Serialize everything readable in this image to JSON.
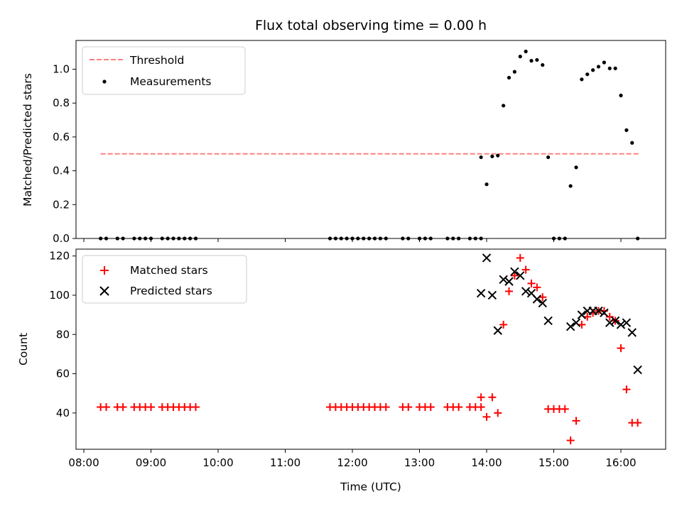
{
  "chart_data": [
    {
      "type": "scatter",
      "title": "Flux total observing time = 0.00 h",
      "xlabel": "",
      "ylabel": "Matched/Predicted stars",
      "xlim": [
        "07:53",
        "16:40"
      ],
      "ylim": [
        0,
        1.17
      ],
      "yticks": [
        "0.0",
        "0.2",
        "0.4",
        "0.6",
        "0.8",
        "1.0"
      ],
      "legend_position": "top-left",
      "grid": false,
      "threshold": {
        "name": "Threshold",
        "y": 0.5,
        "x_start": "08:15",
        "x_end": "16:17",
        "color": "#ff8080",
        "style": "dashed"
      },
      "series": [
        {
          "name": "Measurements",
          "color": "#000000",
          "marker": "dot",
          "points": [
            [
              "08:15",
              0
            ],
            [
              "08:20",
              0
            ],
            [
              "08:30",
              0
            ],
            [
              "08:35",
              0
            ],
            [
              "08:45",
              0
            ],
            [
              "08:50",
              0
            ],
            [
              "08:55",
              0
            ],
            [
              "09:00",
              0
            ],
            [
              "09:10",
              0
            ],
            [
              "09:15",
              0
            ],
            [
              "09:20",
              0
            ],
            [
              "09:25",
              0
            ],
            [
              "09:30",
              0
            ],
            [
              "09:35",
              0
            ],
            [
              "09:40",
              0
            ],
            [
              "11:40",
              0
            ],
            [
              "11:45",
              0
            ],
            [
              "11:50",
              0
            ],
            [
              "11:55",
              0
            ],
            [
              "12:00",
              0
            ],
            [
              "12:05",
              0
            ],
            [
              "12:10",
              0
            ],
            [
              "12:15",
              0
            ],
            [
              "12:20",
              0
            ],
            [
              "12:25",
              0
            ],
            [
              "12:30",
              0
            ],
            [
              "12:45",
              0
            ],
            [
              "12:50",
              0
            ],
            [
              "13:00",
              0
            ],
            [
              "13:05",
              0
            ],
            [
              "13:10",
              0
            ],
            [
              "13:25",
              0
            ],
            [
              "13:30",
              0
            ],
            [
              "13:35",
              0
            ],
            [
              "13:45",
              0
            ],
            [
              "13:50",
              0
            ],
            [
              "13:55",
              0
            ],
            [
              "13:55",
              0.48
            ],
            [
              "14:00",
              0.32
            ],
            [
              "14:05",
              0.485
            ],
            [
              "14:10",
              0.49
            ],
            [
              "14:15",
              0.785
            ],
            [
              "14:20",
              0.95
            ],
            [
              "14:25",
              0.985
            ],
            [
              "14:30",
              1.075
            ],
            [
              "14:35",
              1.105
            ],
            [
              "14:40",
              1.05
            ],
            [
              "14:45",
              1.055
            ],
            [
              "14:50",
              1.025
            ],
            [
              "14:55",
              0.48
            ],
            [
              "15:00",
              0
            ],
            [
              "15:05",
              0
            ],
            [
              "15:10",
              0
            ],
            [
              "15:15",
              0.31
            ],
            [
              "15:20",
              0.42
            ],
            [
              "15:25",
              0.94
            ],
            [
              "15:30",
              0.97
            ],
            [
              "15:35",
              0.995
            ],
            [
              "15:40",
              1.015
            ],
            [
              "15:45",
              1.04
            ],
            [
              "15:50",
              1.005
            ],
            [
              "15:55",
              1.005
            ],
            [
              "16:00",
              0.845
            ],
            [
              "16:05",
              0.64
            ],
            [
              "16:10",
              0.565
            ],
            [
              "16:15",
              0
            ]
          ]
        }
      ]
    },
    {
      "type": "scatter",
      "title": "",
      "xlabel": "Time (UTC)",
      "ylabel": "Count",
      "xlim": [
        "07:53",
        "16:40"
      ],
      "ylim": [
        21.5,
        123.5
      ],
      "xticks": [
        "08:00",
        "09:00",
        "10:00",
        "11:00",
        "12:00",
        "13:00",
        "14:00",
        "15:00",
        "16:00"
      ],
      "yticks": [
        "40",
        "60",
        "80",
        "100",
        "120"
      ],
      "legend_position": "top-left",
      "grid": false,
      "series": [
        {
          "name": "Matched stars",
          "color": "#ff0000",
          "marker": "plus",
          "points": [
            [
              "08:15",
              43
            ],
            [
              "08:20",
              43
            ],
            [
              "08:30",
              43
            ],
            [
              "08:35",
              43
            ],
            [
              "08:45",
              43
            ],
            [
              "08:50",
              43
            ],
            [
              "08:55",
              43
            ],
            [
              "09:00",
              43
            ],
            [
              "09:10",
              43
            ],
            [
              "09:15",
              43
            ],
            [
              "09:20",
              43
            ],
            [
              "09:25",
              43
            ],
            [
              "09:30",
              43
            ],
            [
              "09:35",
              43
            ],
            [
              "09:40",
              43
            ],
            [
              "11:40",
              43
            ],
            [
              "11:45",
              43
            ],
            [
              "11:50",
              43
            ],
            [
              "11:55",
              43
            ],
            [
              "12:00",
              43
            ],
            [
              "12:05",
              43
            ],
            [
              "12:10",
              43
            ],
            [
              "12:15",
              43
            ],
            [
              "12:20",
              43
            ],
            [
              "12:25",
              43
            ],
            [
              "12:30",
              43
            ],
            [
              "12:45",
              43
            ],
            [
              "12:50",
              43
            ],
            [
              "13:00",
              43
            ],
            [
              "13:05",
              43
            ],
            [
              "13:10",
              43
            ],
            [
              "13:25",
              43
            ],
            [
              "13:30",
              43
            ],
            [
              "13:35",
              43
            ],
            [
              "13:45",
              43
            ],
            [
              "13:50",
              43
            ],
            [
              "13:55",
              43
            ],
            [
              "13:55",
              48
            ],
            [
              "14:00",
              38
            ],
            [
              "14:05",
              48
            ],
            [
              "14:10",
              40
            ],
            [
              "14:15",
              85
            ],
            [
              "14:20",
              102
            ],
            [
              "14:25",
              110
            ],
            [
              "14:30",
              119
            ],
            [
              "14:35",
              113
            ],
            [
              "14:40",
              106
            ],
            [
              "14:45",
              104
            ],
            [
              "14:50",
              99
            ],
            [
              "14:55",
              42
            ],
            [
              "15:00",
              42
            ],
            [
              "15:05",
              42
            ],
            [
              "15:10",
              42
            ],
            [
              "15:15",
              26
            ],
            [
              "15:20",
              36
            ],
            [
              "15:25",
              85
            ],
            [
              "15:30",
              89
            ],
            [
              "15:35",
              91
            ],
            [
              "15:40",
              92
            ],
            [
              "15:45",
              92
            ],
            [
              "15:50",
              89
            ],
            [
              "15:55",
              87
            ],
            [
              "16:00",
              73
            ],
            [
              "16:05",
              52
            ],
            [
              "16:10",
              35
            ],
            [
              "16:15",
              35
            ]
          ]
        },
        {
          "name": "Predicted stars",
          "color": "#000000",
          "marker": "x",
          "points": [
            [
              "13:55",
              101
            ],
            [
              "14:00",
              119
            ],
            [
              "14:05",
              100
            ],
            [
              "14:10",
              82
            ],
            [
              "14:15",
              108
            ],
            [
              "14:20",
              107
            ],
            [
              "14:25",
              112
            ],
            [
              "14:30",
              110
            ],
            [
              "14:35",
              102
            ],
            [
              "14:40",
              101
            ],
            [
              "14:45",
              98
            ],
            [
              "14:50",
              96
            ],
            [
              "14:55",
              87
            ],
            [
              "15:15",
              84
            ],
            [
              "15:20",
              86
            ],
            [
              "15:25",
              90
            ],
            [
              "15:30",
              92
            ],
            [
              "15:35",
              92
            ],
            [
              "15:40",
              92
            ],
            [
              "15:45",
              91
            ],
            [
              "15:50",
              86
            ],
            [
              "15:55",
              87
            ],
            [
              "16:00",
              85
            ],
            [
              "16:05",
              86
            ],
            [
              "16:10",
              81
            ],
            [
              "16:15",
              62
            ]
          ]
        }
      ]
    }
  ]
}
